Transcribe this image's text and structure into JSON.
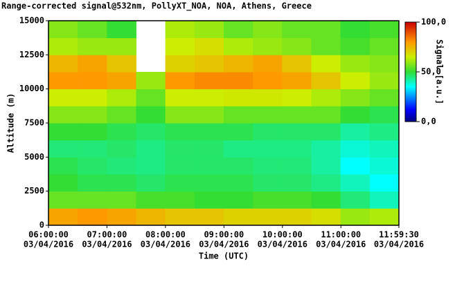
{
  "chart_data": {
    "type": "heatmap",
    "title": "Range-corrected signal@532nm, PollyXT_NOA, NOA, Athens, Greece",
    "x_label": "Time (UTC)",
    "y_label": "Altitude (m)",
    "colorbar_label": "Signal [a.u.]",
    "xlim": [
      "06:00:00",
      "11:59:30"
    ],
    "xticks": [
      {
        "value": "06:00:00",
        "label": [
          "06:00:00",
          "03/04/2016"
        ]
      },
      {
        "value": "07:00:00",
        "label": [
          "07:00:00",
          "03/04/2016"
        ]
      },
      {
        "value": "08:00:00",
        "label": [
          "08:00:00",
          "03/04/2016"
        ]
      },
      {
        "value": "09:00:00",
        "label": [
          "09:00:00",
          "03/04/2016"
        ]
      },
      {
        "value": "10:00:00",
        "label": [
          "10:00:00",
          "03/04/2016"
        ]
      },
      {
        "value": "11:00:00",
        "label": [
          "11:00:00",
          "03/04/2016"
        ]
      },
      {
        "value": "11:59:30",
        "label": [
          "11:59:30",
          "03/04/2016"
        ]
      }
    ],
    "ylim": [
      0,
      15000
    ],
    "yticks": [
      0,
      2500,
      5000,
      7500,
      10000,
      12500,
      15000
    ],
    "clim": [
      0,
      100
    ],
    "cticks": [
      {
        "value": 0,
        "label": "0,0"
      },
      {
        "value": 50,
        "label": "50,0"
      },
      {
        "value": 100,
        "label": "100,0"
      }
    ],
    "z": [
      [
        78,
        80,
        78,
        75,
        72,
        72,
        70,
        70,
        70,
        68,
        60,
        62
      ],
      [
        55,
        55,
        55,
        52,
        52,
        50,
        50,
        52,
        52,
        50,
        45,
        40
      ],
      [
        50,
        48,
        48,
        46,
        48,
        48,
        48,
        46,
        46,
        44,
        40,
        35
      ],
      [
        48,
        46,
        45,
        44,
        46,
        46,
        46,
        45,
        45,
        42,
        35,
        38
      ],
      [
        45,
        45,
        46,
        44,
        46,
        46,
        44,
        44,
        44,
        42,
        38,
        40
      ],
      [
        50,
        50,
        48,
        46,
        48,
        48,
        48,
        46,
        46,
        46,
        42,
        44
      ],
      [
        58,
        58,
        55,
        50,
        58,
        58,
        55,
        55,
        55,
        55,
        50,
        48
      ],
      [
        65,
        65,
        62,
        55,
        65,
        65,
        66,
        66,
        65,
        62,
        58,
        55
      ],
      [
        80,
        80,
        78,
        60,
        80,
        82,
        82,
        80,
        78,
        72,
        65,
        60
      ],
      [
        75,
        78,
        72,
        null,
        70,
        72,
        75,
        78,
        72,
        65,
        60,
        58
      ],
      [
        62,
        60,
        60,
        null,
        65,
        68,
        62,
        60,
        58,
        55,
        52,
        55
      ],
      [
        58,
        55,
        50,
        null,
        62,
        60,
        55,
        58,
        55,
        55,
        50,
        52
      ]
    ]
  }
}
